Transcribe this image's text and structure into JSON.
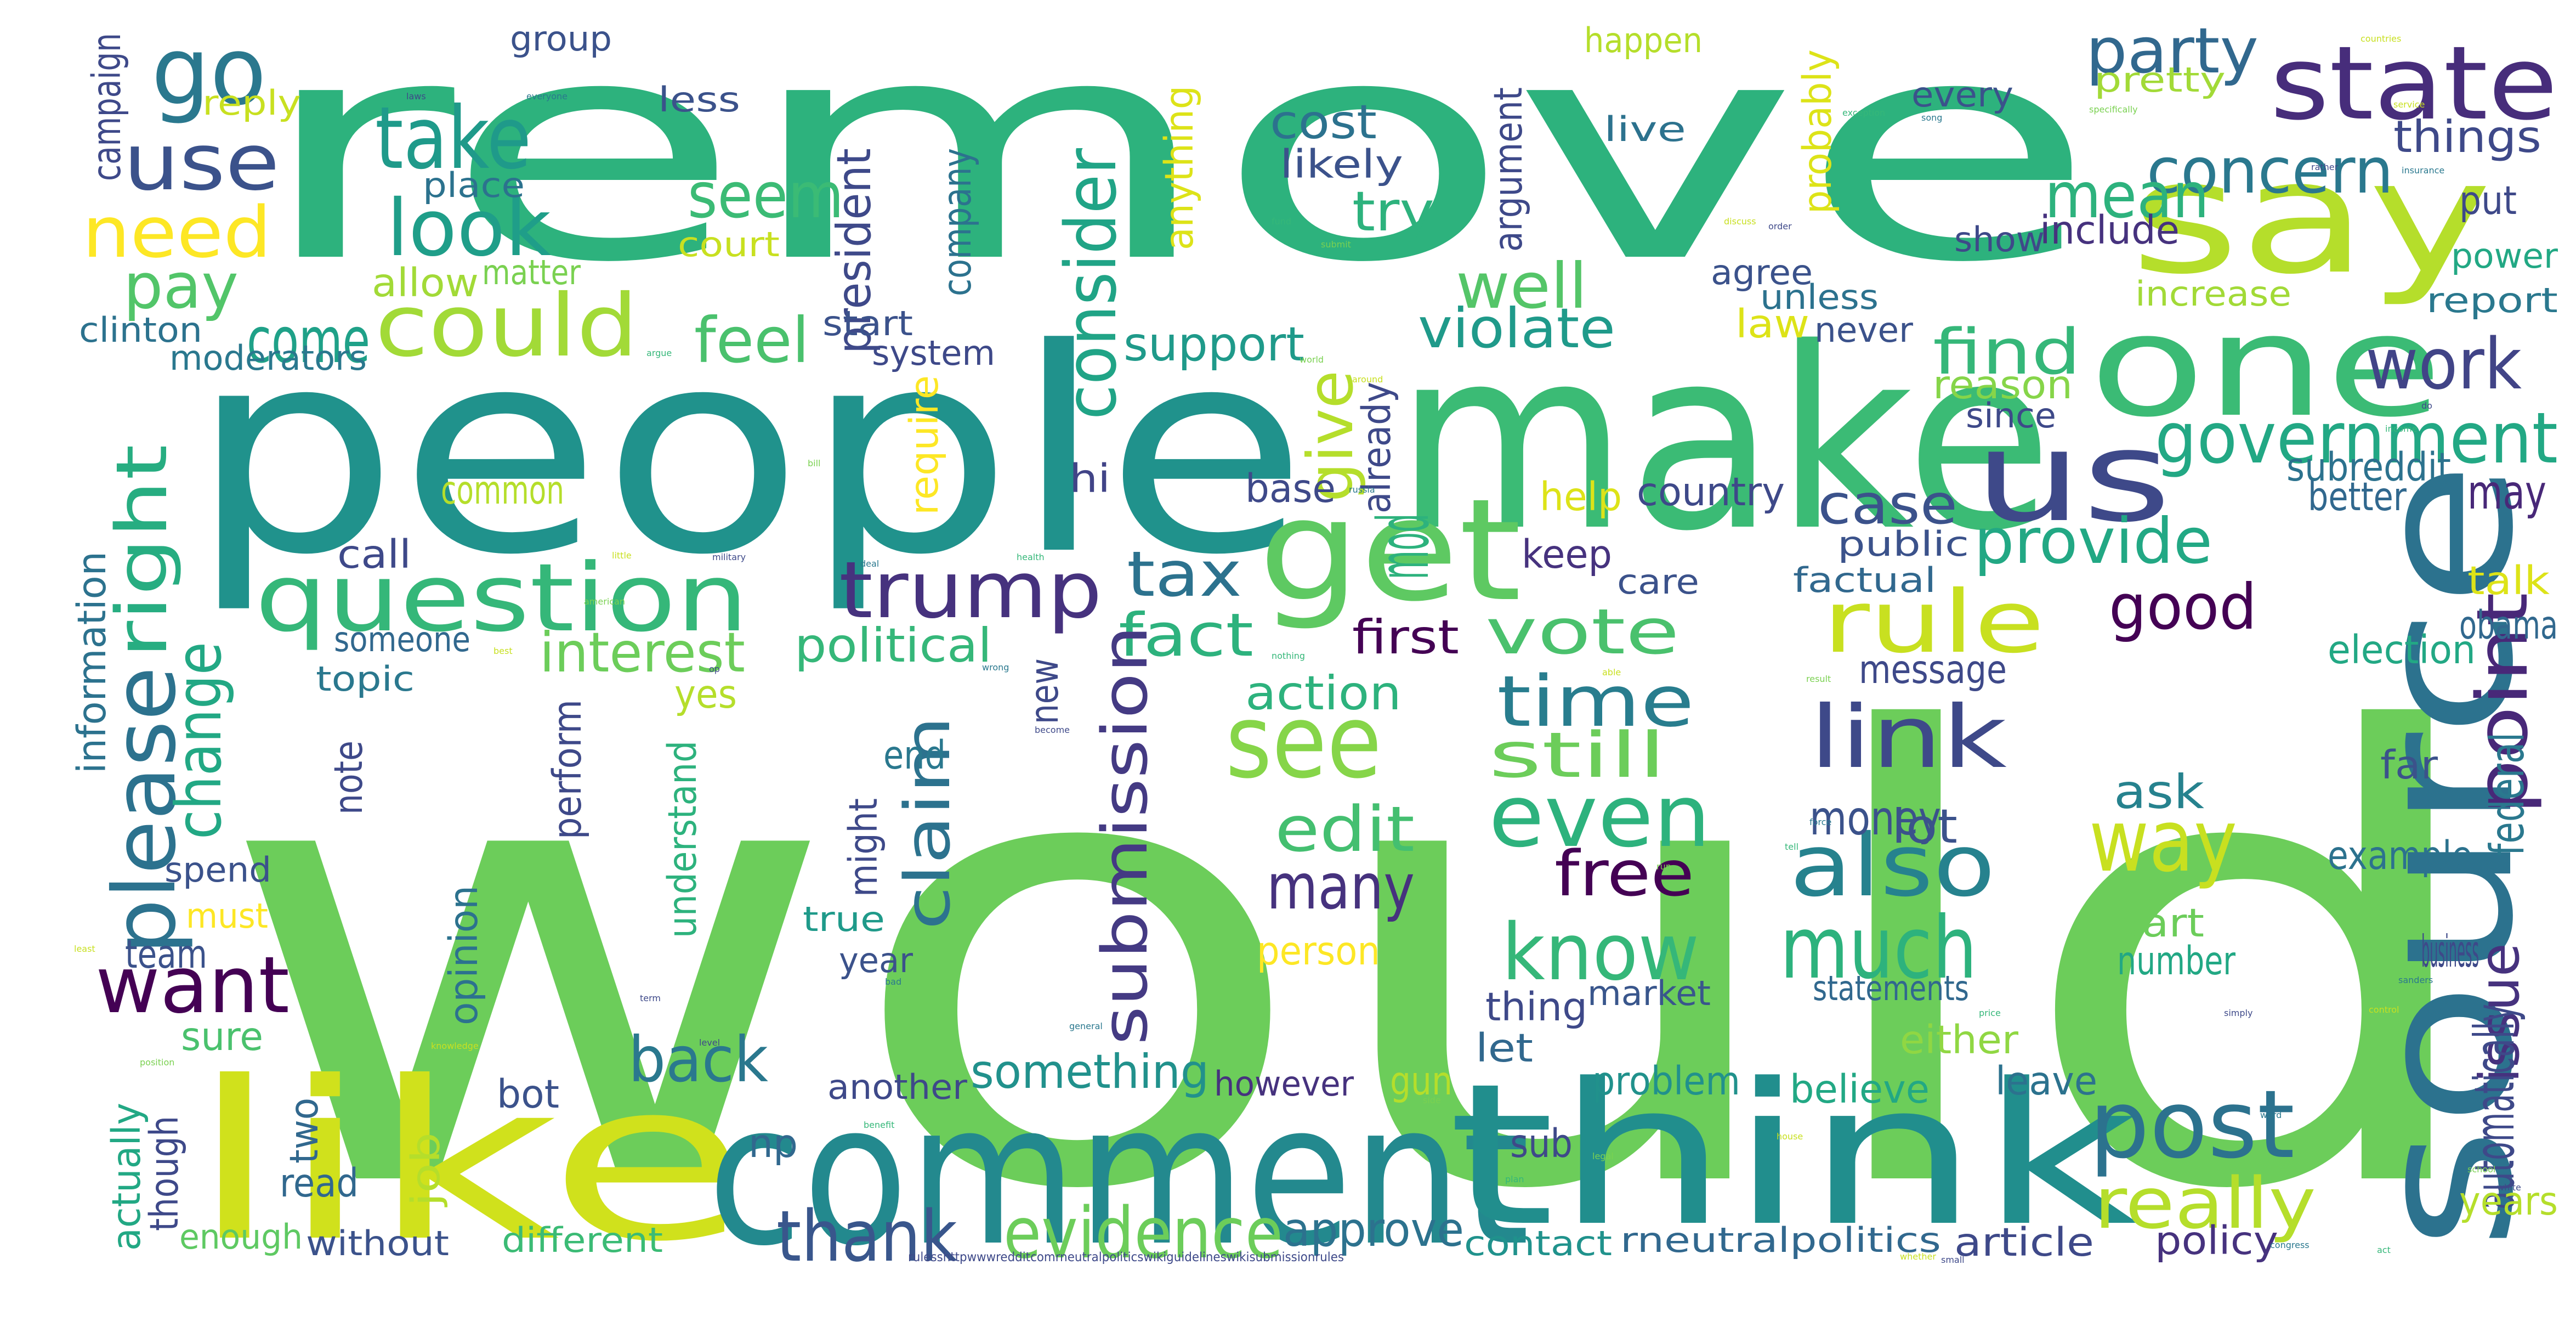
{
  "words": [
    {
      "text": "would",
      "color": "#6ccd5a"
    },
    {
      "text": "remove",
      "color": "#2db27d"
    },
    {
      "text": "people",
      "color": "#20928c"
    },
    {
      "text": "make",
      "color": "#3bbb75"
    },
    {
      "text": "like",
      "color": "#d0e11c"
    },
    {
      "text": "comment",
      "color": "#23898e"
    },
    {
      "text": "think",
      "color": "#218e8d"
    },
    {
      "text": "source",
      "color": "#2c728e"
    },
    {
      "text": "say",
      "color": "#b5de2b"
    },
    {
      "text": "one",
      "color": "#3bbb75"
    },
    {
      "text": "get",
      "color": "#5ec962"
    },
    {
      "text": "us",
      "color": "#3e4989"
    },
    {
      "text": "go",
      "color": "#2a788e"
    },
    {
      "text": "state",
      "color": "#472d7b"
    },
    {
      "text": "question",
      "color": "#35b779"
    },
    {
      "text": "could",
      "color": "#a2da37"
    },
    {
      "text": "look",
      "color": "#1f9e89"
    },
    {
      "text": "take",
      "color": "#1f9a8a"
    },
    {
      "text": "use",
      "color": "#3b528b"
    },
    {
      "text": "need",
      "color": "#fde725"
    },
    {
      "text": "trump",
      "color": "#46327e"
    },
    {
      "text": "rule",
      "color": "#c8e020"
    },
    {
      "text": "vote",
      "color": "#4ac16d"
    },
    {
      "text": "post",
      "color": "#2c728e"
    },
    {
      "text": "want",
      "color": "#440154"
    },
    {
      "text": "please",
      "color": "#2c728e"
    },
    {
      "text": "right",
      "color": "#27ad81"
    },
    {
      "text": "see",
      "color": "#86d549"
    },
    {
      "text": "even",
      "color": "#2db27d"
    },
    {
      "text": "also",
      "color": "#26828e"
    },
    {
      "text": "link",
      "color": "#3e4989"
    },
    {
      "text": "know",
      "color": "#35b779"
    },
    {
      "text": "much",
      "color": "#2db27d"
    },
    {
      "text": "way",
      "color": "#c8e020"
    },
    {
      "text": "point",
      "color": "#482878"
    },
    {
      "text": "work",
      "color": "#414487"
    },
    {
      "text": "government",
      "color": "#22a884"
    },
    {
      "text": "concern",
      "color": "#2a788e"
    },
    {
      "text": "party",
      "color": "#31688e"
    },
    {
      "text": "mean",
      "color": "#2db27d"
    },
    {
      "text": "seem",
      "color": "#3bbb75"
    },
    {
      "text": "consider",
      "color": "#20a486"
    },
    {
      "text": "well",
      "color": "#54c568"
    },
    {
      "text": "feel",
      "color": "#4ac16d"
    },
    {
      "text": "find",
      "color": "#35b779"
    },
    {
      "text": "provide",
      "color": "#22a884"
    },
    {
      "text": "good",
      "color": "#440154"
    },
    {
      "text": "case",
      "color": "#3b528b"
    },
    {
      "text": "tax",
      "color": "#2c728e"
    },
    {
      "text": "fact",
      "color": "#2db27d"
    },
    {
      "text": "time",
      "color": "#287d8e"
    },
    {
      "text": "still",
      "color": "#6ccd5a"
    },
    {
      "text": "edit",
      "color": "#44bf70"
    },
    {
      "text": "free",
      "color": "#440154"
    },
    {
      "text": "many",
      "color": "#46327e"
    },
    {
      "text": "claim",
      "color": "#2c728e"
    },
    {
      "text": "submission",
      "color": "#443a83"
    },
    {
      "text": "evidence",
      "color": "#6ccd5a"
    },
    {
      "text": "thank",
      "color": "#39568c"
    },
    {
      "text": "really",
      "color": "#b5de2b"
    },
    {
      "text": "back",
      "color": "#2a788e"
    },
    {
      "text": "change",
      "color": "#22a884"
    },
    {
      "text": "come",
      "color": "#1fa188"
    },
    {
      "text": "pay",
      "color": "#52c569"
    },
    {
      "text": "give",
      "color": "#b5de2b"
    },
    {
      "text": "support",
      "color": "#1f9a8a"
    },
    {
      "text": "violate",
      "color": "#1f9a8a"
    },
    {
      "text": "cost",
      "color": "#2c728e"
    },
    {
      "text": "try",
      "color": "#2db27d"
    },
    {
      "text": "likely",
      "color": "#3b528b"
    },
    {
      "text": "president",
      "color": "#3e4989"
    },
    {
      "text": "interest",
      "color": "#6ccd5a"
    },
    {
      "text": "political",
      "color": "#35b779"
    },
    {
      "text": "first",
      "color": "#440154"
    },
    {
      "text": "action",
      "color": "#2db27d"
    },
    {
      "text": "something",
      "color": "#21918c"
    },
    {
      "text": "approve",
      "color": "#2c728e"
    },
    {
      "text": "issue",
      "color": "#46327e"
    },
    {
      "text": "ask",
      "color": "#26828e"
    },
    {
      "text": "money",
      "color": "#3b528b"
    },
    {
      "text": "lot",
      "color": "#3b528b"
    },
    {
      "text": "keep",
      "color": "#46327e"
    },
    {
      "text": "country",
      "color": "#3e4989"
    },
    {
      "text": "subreddit",
      "color": "#2c728e"
    },
    {
      "text": "may",
      "color": "#482878"
    },
    {
      "text": "better",
      "color": "#31688e"
    },
    {
      "text": "talk",
      "color": "#dde318"
    },
    {
      "text": "obama",
      "color": "#31688e"
    },
    {
      "text": "election",
      "color": "#22a884"
    },
    {
      "text": "message",
      "color": "#3e4989"
    },
    {
      "text": "far",
      "color": "#3b528b"
    },
    {
      "text": "example",
      "color": "#2c728e"
    },
    {
      "text": "federal",
      "color": "#2a788e"
    },
    {
      "text": "automatically",
      "color": "#3e4989"
    },
    {
      "text": "years",
      "color": "#b5de2b"
    },
    {
      "text": "part",
      "color": "#6ccd5a"
    },
    {
      "text": "number",
      "color": "#22a884"
    },
    {
      "text": "statements",
      "color": "#31688e"
    },
    {
      "text": "either",
      "color": "#90d743"
    },
    {
      "text": "leave",
      "color": "#2c728e"
    },
    {
      "text": "believe",
      "color": "#22a884"
    },
    {
      "text": "problem",
      "color": "#21918c"
    },
    {
      "text": "article",
      "color": "#3e4989"
    },
    {
      "text": "policy",
      "color": "#46327e"
    },
    {
      "text": "rneutralpolitics",
      "color": "#31688e"
    },
    {
      "text": "contact",
      "color": "#20928c"
    },
    {
      "text": "sub",
      "color": "#3e4989"
    },
    {
      "text": "let",
      "color": "#31688e"
    },
    {
      "text": "gun",
      "color": "#b5de2b"
    },
    {
      "text": "market",
      "color": "#39568c"
    },
    {
      "text": "thing",
      "color": "#3e4989"
    },
    {
      "text": "however",
      "color": "#46327e"
    },
    {
      "text": "another",
      "color": "#3e4989"
    },
    {
      "text": "bot",
      "color": "#3b528b"
    },
    {
      "text": "np",
      "color": "#31688e"
    },
    {
      "text": "different",
      "color": "#3bbb75"
    },
    {
      "text": "without",
      "color": "#3b528b"
    },
    {
      "text": "enough",
      "color": "#5ec962"
    },
    {
      "text": "read",
      "color": "#31688e"
    },
    {
      "text": "job",
      "color": "#b5de2b"
    },
    {
      "text": "two",
      "color": "#31688e"
    },
    {
      "text": "though",
      "color": "#3e4989"
    },
    {
      "text": "actually",
      "color": "#22a884"
    },
    {
      "text": "sure",
      "color": "#4ac16d"
    },
    {
      "text": "team",
      "color": "#3b528b"
    },
    {
      "text": "must",
      "color": "#fde725"
    },
    {
      "text": "spend",
      "color": "#3b528b"
    },
    {
      "text": "true",
      "color": "#1f9a8a"
    },
    {
      "text": "year",
      "color": "#3b528b"
    },
    {
      "text": "might",
      "color": "#3e4989"
    },
    {
      "text": "end",
      "color": "#2a788e"
    },
    {
      "text": "person",
      "color": "#fde725"
    },
    {
      "text": "understand",
      "color": "#2db27d"
    },
    {
      "text": "opinion",
      "color": "#2c728e"
    },
    {
      "text": "perform",
      "color": "#3e4989"
    },
    {
      "text": "note",
      "color": "#3e4989"
    },
    {
      "text": "yes",
      "color": "#b5de2b"
    },
    {
      "text": "new",
      "color": "#3e4989"
    },
    {
      "text": "topic",
      "color": "#2a788e"
    },
    {
      "text": "someone",
      "color": "#31688e"
    },
    {
      "text": "call",
      "color": "#3e4989"
    },
    {
      "text": "common",
      "color": "#b5de2b"
    },
    {
      "text": "hi",
      "color": "#414487"
    },
    {
      "text": "base",
      "color": "#3e4989"
    },
    {
      "text": "help",
      "color": "#dde318"
    },
    {
      "text": "require",
      "color": "#fde725"
    },
    {
      "text": "information",
      "color": "#2c728e"
    },
    {
      "text": "moderators",
      "color": "#2a788e"
    },
    {
      "text": "clinton",
      "color": "#2c728e"
    },
    {
      "text": "allow",
      "color": "#a2da37"
    },
    {
      "text": "matter",
      "color": "#7ad151"
    },
    {
      "text": "place",
      "color": "#2c728e"
    },
    {
      "text": "campaign",
      "color": "#3e4989"
    },
    {
      "text": "reply",
      "color": "#c8e020"
    },
    {
      "text": "group",
      "color": "#3b528b"
    },
    {
      "text": "less",
      "color": "#3b528b"
    },
    {
      "text": "court",
      "color": "#c8e020"
    },
    {
      "text": "company",
      "color": "#2c728e"
    },
    {
      "text": "anything",
      "color": "#dde318"
    },
    {
      "text": "start",
      "color": "#3b528b"
    },
    {
      "text": "system",
      "color": "#3e4989"
    },
    {
      "text": "mod",
      "color": "#2db27d"
    },
    {
      "text": "argument",
      "color": "#3e4989"
    },
    {
      "text": "already",
      "color": "#3e4989"
    },
    {
      "text": "agree",
      "color": "#3b528b"
    },
    {
      "text": "law",
      "color": "#dde318"
    },
    {
      "text": "never",
      "color": "#3b528b"
    },
    {
      "text": "unless",
      "color": "#2c728e"
    },
    {
      "text": "happen",
      "color": "#b5de2b"
    },
    {
      "text": "live",
      "color": "#2c728e"
    },
    {
      "text": "probably",
      "color": "#dde318"
    },
    {
      "text": "every",
      "color": "#3b528b"
    },
    {
      "text": "pretty",
      "color": "#a2da37"
    },
    {
      "text": "things",
      "color": "#3e4989"
    },
    {
      "text": "include",
      "color": "#46327e"
    },
    {
      "text": "show",
      "color": "#3e4989"
    },
    {
      "text": "put",
      "color": "#3e4989"
    },
    {
      "text": "power",
      "color": "#22a884"
    },
    {
      "text": "increase",
      "color": "#a2da37"
    },
    {
      "text": "report",
      "color": "#2a788e"
    },
    {
      "text": "reason",
      "color": "#86d549"
    },
    {
      "text": "since",
      "color": "#3e4989"
    },
    {
      "text": "public",
      "color": "#3b528b"
    },
    {
      "text": "factual",
      "color": "#31688e"
    },
    {
      "text": "care",
      "color": "#3b528b"
    },
    {
      "text": "business",
      "color": "#3e4989"
    },
    {
      "text": "rulesshttpwwwredditcomrneutralpoliticswikiguidelineswikisubmissionrules",
      "color": "#3e4989"
    }
  ],
  "tiny_words": [
    "countries",
    "laws",
    "everyone",
    "exception",
    "specifically",
    "service",
    "rather",
    "insurance",
    "fund",
    "submit",
    "discuss",
    "order",
    "song",
    "argue",
    "world",
    "around",
    "do",
    "russia",
    "income",
    "bill",
    "little",
    "military",
    "deal",
    "health",
    "american",
    "best",
    "op",
    "wrong",
    "nothing",
    "result",
    "able",
    "become",
    "force",
    "tell",
    "run",
    "least",
    "term",
    "bad",
    "price",
    "position",
    "knowledge",
    "level",
    "general",
    "benefit",
    "side",
    "house",
    "white",
    "word",
    "plan",
    "legal",
    "whether",
    "small",
    "congress",
    "act",
    "school",
    "control",
    "simply",
    "sanders"
  ]
}
